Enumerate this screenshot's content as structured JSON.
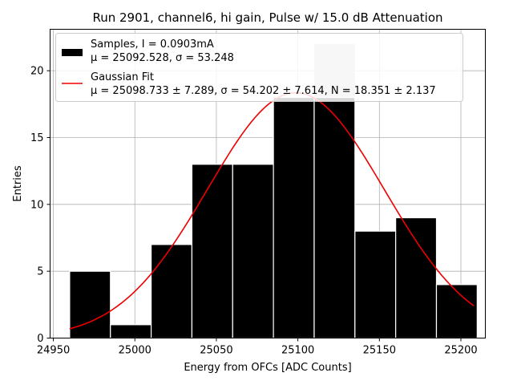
{
  "chart_data": {
    "type": "bar",
    "title": "Run 2901, channel6, hi gain, Pulse w/ 15.0 dB Attenuation",
    "xlabel": "Energy from OFCs [ADC Counts]",
    "ylabel": "Entries",
    "xlim": [
      24948,
      25215
    ],
    "ylim": [
      0,
      23.1
    ],
    "xticks": [
      24950,
      25000,
      25050,
      25100,
      25150,
      25200
    ],
    "yticks": [
      0,
      5,
      10,
      15,
      20
    ],
    "grid": true,
    "legend_position": "top-left",
    "bins": [
      {
        "x0": 24960,
        "x1": 24985,
        "count": 5
      },
      {
        "x0": 24985,
        "x1": 25010,
        "count": 1
      },
      {
        "x0": 25010,
        "x1": 25035,
        "count": 7
      },
      {
        "x0": 25035,
        "x1": 25060,
        "count": 13
      },
      {
        "x0": 25060,
        "x1": 25085,
        "count": 13
      },
      {
        "x0": 25085,
        "x1": 25110,
        "count": 18
      },
      {
        "x0": 25110,
        "x1": 25135,
        "count": 22
      },
      {
        "x0": 25135,
        "x1": 25160,
        "count": 8
      },
      {
        "x0": 25160,
        "x1": 25185,
        "count": 9
      },
      {
        "x0": 25185,
        "x1": 25210,
        "count": 4
      }
    ],
    "highlight_bin": 6,
    "fit": {
      "mu": 25098.733,
      "sigma": 54.202,
      "N": 18.351,
      "x_range": [
        24960,
        25208
      ],
      "color": "#ee0000"
    },
    "legend": [
      {
        "kind": "patch",
        "color": "#000000",
        "line1": "Samples, I = 0.0903mA",
        "line2": "μ = 25092.528, σ = 53.248"
      },
      {
        "kind": "line",
        "color": "#ee0000",
        "line1": "Gaussian Fit",
        "line2": "μ = 25098.733 ± 7.289, σ = 54.202 ± 7.614, N = 18.351 ± 2.137"
      }
    ],
    "colors": {
      "bar": "#000000",
      "bar_edge": "#ffffff",
      "highlight": "#c8c8c8",
      "grid": "#b0b0b0"
    }
  }
}
